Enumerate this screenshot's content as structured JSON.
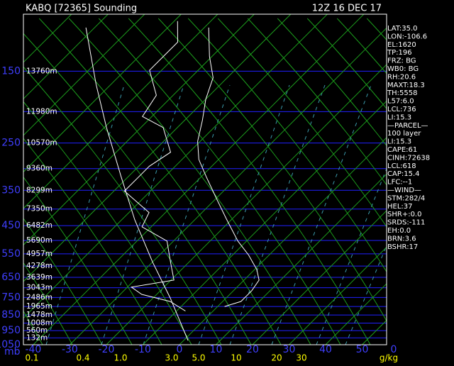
{
  "chart_data": {
    "type": "skewt",
    "title": "KABQ [72365] Sounding",
    "time": "12Z 16 DEC 17",
    "ylim": [
      1050,
      100
    ],
    "yticks": [
      150,
      250,
      350,
      450,
      550,
      650,
      750,
      850,
      950,
      1050
    ],
    "y_unit": "mb",
    "minor_yticks": [
      200,
      300,
      400,
      500,
      600,
      700,
      800,
      900,
      1000
    ],
    "height_labels": [
      {
        "value": 150,
        "label": "13760m"
      },
      {
        "value": 200,
        "label": "11980m"
      },
      {
        "value": 250,
        "label": "10570m"
      },
      {
        "value": 300,
        "label": "9360m"
      },
      {
        "value": 350,
        "label": "8299m"
      },
      {
        "value": 400,
        "label": "7350m"
      },
      {
        "value": 450,
        "label": "6482m"
      },
      {
        "value": 500,
        "label": "5690m"
      },
      {
        "value": 550,
        "label": "4957m"
      },
      {
        "value": 600,
        "label": "4278m"
      },
      {
        "value": 650,
        "label": "3639m"
      },
      {
        "value": 700,
        "label": "3043m"
      },
      {
        "value": 750,
        "label": "2486m"
      },
      {
        "value": 800,
        "label": "1965m"
      },
      {
        "value": 850,
        "label": "1478m"
      },
      {
        "value": 900,
        "label": "1008m"
      },
      {
        "value": 950,
        "label": "560m"
      },
      {
        "value": 1000,
        "label": "132m"
      }
    ],
    "xlim": [
      -42.7,
      56.7
    ],
    "xticks": [
      -40,
      -30,
      -20,
      -10,
      0,
      10,
      20,
      30,
      40,
      50
    ],
    "edge_label": "0",
    "mixing_ratio_labels": [
      "0.1",
      "0.4",
      "1.0",
      "3.0",
      "5.0",
      "10",
      "20",
      "30"
    ],
    "mixing_ratio_unit": "g/kg",
    "series": [
      {
        "color": "#ffffff",
        "pressure": [
          800,
          772,
          715,
          663,
          615,
          555,
          502,
          432,
          371,
          318,
          281,
          247,
          213,
          183,
          157,
          135,
          110
        ],
        "values": [
          1.9,
          5.0,
          5.0,
          4.1,
          0.6,
          -5.6,
          -12.4,
          -21.2,
          -29.9,
          -38.6,
          -45.4,
          -50.7,
          -55.1,
          -60.0,
          -63.9,
          -70.7,
          -78.8
        ]
      },
      {
        "color": "#ffffff",
        "pressure": [
          826,
          772,
          734,
          697,
          663,
          584,
          502,
          454,
          410,
          352,
          318,
          295,
          267,
          224,
          207,
          178,
          149,
          122,
          105
        ],
        "values": [
          -7.6,
          -14.4,
          -24.1,
          -28.9,
          -19.2,
          -25.0,
          -31.8,
          -42.5,
          -44.5,
          -57.1,
          -57.1,
          -57.1,
          -55.1,
          -63.9,
          -72.6,
          -74.6,
          -83.3,
          -83.3,
          -89.1
        ]
      },
      {
        "color": "#ffffff",
        "pressure": [
          1019,
          753,
          584,
          432,
          318,
          224,
          165,
          110
        ],
        "values": [
          1.2,
          -15.3,
          -29.9,
          -46.4,
          -61.9,
          -79.4,
          -94.0,
          -112.4
        ]
      }
    ],
    "stats": [
      "LAT:35.0",
      "LON:-106.6",
      "EL:1620",
      "TP:196",
      "FRZ: BG",
      "WB0: BG",
      "RH:20.6",
      "MAXT:18.3",
      "TH:5558",
      "L57:6.0",
      "LCL:736",
      "LI:15.3",
      "—PARCEL—",
      "100 layer",
      "LI:15.3",
      "CAPE:61",
      "CINH:72638",
      "LCL:618",
      "CAP:15.4",
      "LFC:--1",
      "—WIND—",
      "STM:282/4",
      "HEL:37",
      "SHR+:0.0",
      "SRDS:-111",
      "EH:0.0",
      "BRN:3.6",
      "BSHR:17"
    ]
  }
}
